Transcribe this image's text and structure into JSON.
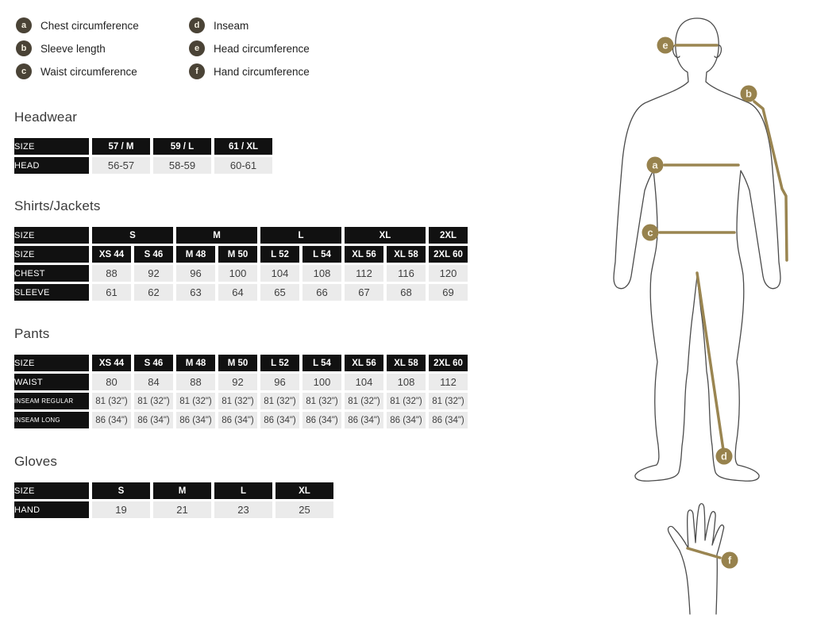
{
  "colors": {
    "legend_marker": "#4a4336",
    "diagram_marker": "#97824d",
    "measure_line": "#9a8551",
    "table_header_bg": "#111111",
    "table_cell_bg": "#ebebeb",
    "heading_text": "#3a3a3a",
    "cell_text": "#3f3f3f"
  },
  "legend": {
    "items": [
      {
        "key": "a",
        "label": "Chest circumference"
      },
      {
        "key": "b",
        "label": "Sleeve length"
      },
      {
        "key": "c",
        "label": "Waist circumference"
      },
      {
        "key": "d",
        "label": "Inseam"
      },
      {
        "key": "e",
        "label": "Head circumference"
      },
      {
        "key": "f",
        "label": "Hand circumference"
      }
    ]
  },
  "diagram": {
    "markers": [
      "a",
      "b",
      "c",
      "d",
      "e",
      "f"
    ]
  },
  "tables": [
    {
      "id": "headwear",
      "title": "Headwear",
      "style": "wide",
      "rows": [
        {
          "type": "header",
          "label": "SIZE",
          "cells": [
            {
              "text": "57 / M"
            },
            {
              "text": "59 / L"
            },
            {
              "text": "61 / XL"
            }
          ]
        },
        {
          "type": "data",
          "label": "HEAD",
          "cells": [
            {
              "text": "56-57"
            },
            {
              "text": "58-59"
            },
            {
              "text": "60-61"
            }
          ]
        }
      ]
    },
    {
      "id": "shirts",
      "title": "Shirts/Jackets",
      "style": "narrow",
      "rows": [
        {
          "type": "header",
          "label": "SIZE",
          "cells": [
            {
              "text": "S",
              "span": 2
            },
            {
              "text": "M",
              "span": 2
            },
            {
              "text": "L",
              "span": 2
            },
            {
              "text": "XL",
              "span": 2
            },
            {
              "text": "2XL"
            }
          ]
        },
        {
          "type": "header",
          "label": "SIZE",
          "cells": [
            {
              "text": "XS 44"
            },
            {
              "text": "S 46"
            },
            {
              "text": "M 48"
            },
            {
              "text": "M 50"
            },
            {
              "text": "L 52"
            },
            {
              "text": "L 54"
            },
            {
              "text": "XL 56"
            },
            {
              "text": "XL 58"
            },
            {
              "text": "2XL 60"
            }
          ]
        },
        {
          "type": "data",
          "label": "CHEST",
          "cells": [
            {
              "text": "88"
            },
            {
              "text": "92"
            },
            {
              "text": "96"
            },
            {
              "text": "100"
            },
            {
              "text": "104"
            },
            {
              "text": "108"
            },
            {
              "text": "112"
            },
            {
              "text": "116"
            },
            {
              "text": "120"
            }
          ]
        },
        {
          "type": "data",
          "label": "SLEEVE",
          "cells": [
            {
              "text": "61"
            },
            {
              "text": "62"
            },
            {
              "text": "63"
            },
            {
              "text": "64"
            },
            {
              "text": "65"
            },
            {
              "text": "66"
            },
            {
              "text": "67"
            },
            {
              "text": "68"
            },
            {
              "text": "69"
            }
          ]
        }
      ]
    },
    {
      "id": "pants",
      "title": "Pants",
      "style": "narrow",
      "rows": [
        {
          "type": "header",
          "label": "SIZE",
          "cells": [
            {
              "text": "XS 44"
            },
            {
              "text": "S 46"
            },
            {
              "text": "M 48"
            },
            {
              "text": "M 50"
            },
            {
              "text": "L 52"
            },
            {
              "text": "L 54"
            },
            {
              "text": "XL 56"
            },
            {
              "text": "XL 58"
            },
            {
              "text": "2XL 60"
            }
          ]
        },
        {
          "type": "data",
          "label": "WAIST",
          "cells": [
            {
              "text": "80"
            },
            {
              "text": "84"
            },
            {
              "text": "88"
            },
            {
              "text": "92"
            },
            {
              "text": "96"
            },
            {
              "text": "100"
            },
            {
              "text": "104"
            },
            {
              "text": "108"
            },
            {
              "text": "112"
            }
          ]
        },
        {
          "type": "data",
          "label": "INSEAM REGULAR",
          "cells": [
            {
              "text": "81 (32\")"
            },
            {
              "text": "81 (32\")"
            },
            {
              "text": "81 (32\")"
            },
            {
              "text": "81 (32\")"
            },
            {
              "text": "81 (32\")"
            },
            {
              "text": "81 (32\")"
            },
            {
              "text": "81 (32\")"
            },
            {
              "text": "81 (32\")"
            },
            {
              "text": "81 (32\")"
            }
          ]
        },
        {
          "type": "data",
          "label": "INSEAM LONG",
          "cells": [
            {
              "text": "86 (34\")"
            },
            {
              "text": "86 (34\")"
            },
            {
              "text": "86 (34\")"
            },
            {
              "text": "86 (34\")"
            },
            {
              "text": "86 (34\")"
            },
            {
              "text": "86 (34\")"
            },
            {
              "text": "86 (34\")"
            },
            {
              "text": "86 (34\")"
            },
            {
              "text": "86 (34\")"
            }
          ]
        }
      ]
    },
    {
      "id": "gloves",
      "title": "Gloves",
      "style": "wide",
      "rows": [
        {
          "type": "header",
          "label": "SIZE",
          "cells": [
            {
              "text": "S"
            },
            {
              "text": "M"
            },
            {
              "text": "L"
            },
            {
              "text": "XL"
            }
          ]
        },
        {
          "type": "data",
          "label": "HAND",
          "cells": [
            {
              "text": "19"
            },
            {
              "text": "21"
            },
            {
              "text": "23"
            },
            {
              "text": "25"
            }
          ]
        }
      ]
    }
  ]
}
